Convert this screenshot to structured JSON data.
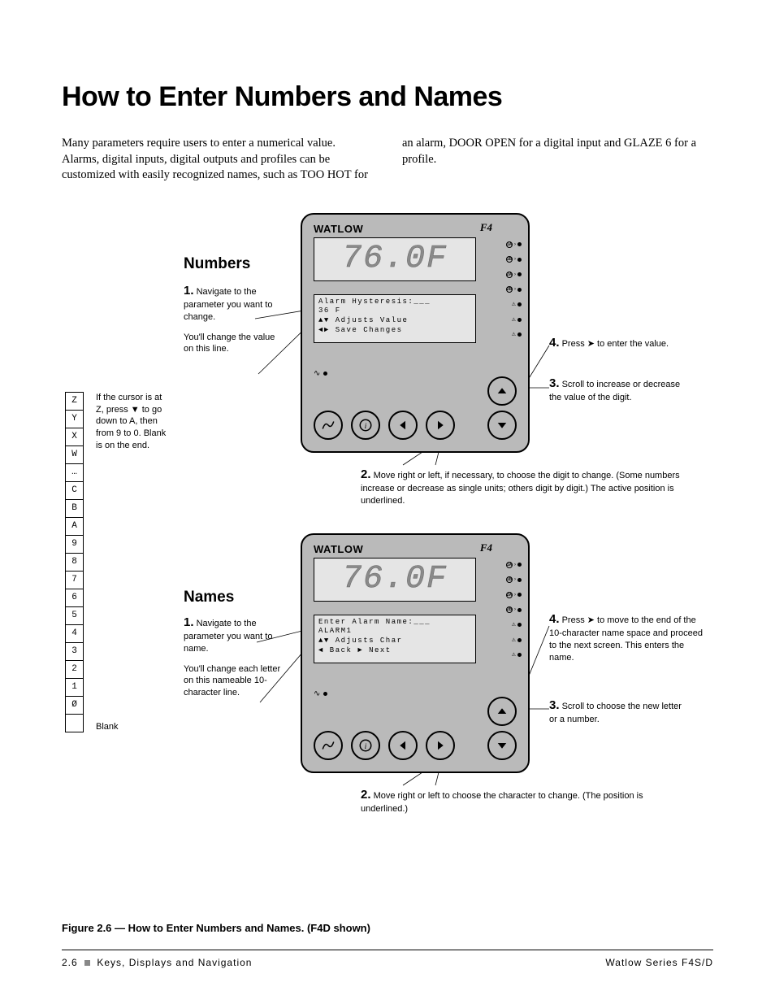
{
  "title": "How to Enter Numbers and Names",
  "intro": "Many parameters require users to enter a numerical value. Alarms, digital inputs, digital outputs and profiles can be customized with easily recognized names, such as TOO HOT for an alarm, DOOR OPEN for a digital input and GLAZE 6 for a profile.",
  "char_cells": [
    "Z",
    "Y",
    "X",
    "W",
    "…",
    "C",
    "B",
    "A",
    "9",
    "8",
    "7",
    "6",
    "5",
    "4",
    "3",
    "2",
    "1",
    "Ø",
    ""
  ],
  "blank_label": "Blank",
  "cursor_note": "If the cursor is at Z, press ▼ to go down to A, then from 9 to 0. Blank is on the end.",
  "numbers": {
    "heading": "Numbers",
    "step1": "Navigate to the parameter you want to change.",
    "step1_sub": "You'll change the value on this line.",
    "step2": "Move right or left, if necessary, to choose the digit to change. (Some numbers increase or decrease as single units; others digit by digit.) The active position is underlined.",
    "step3": "Scroll to increase or decrease the value of the digit.",
    "step4": "Press ➤ to enter the value."
  },
  "names": {
    "heading": "Names",
    "step1": "Navigate to the parameter you want to name.",
    "step1_sub": "You'll change each letter on this nameable 10-character line.",
    "step2": "Move right or left to choose the character to change. (The position is underlined.)",
    "step3": "Scroll to choose the new letter or a number.",
    "step4": "Press ➤ to move to the end of the 10-character name space and proceed to the next screen. This enters the name."
  },
  "device1": {
    "brand": "WATLOW",
    "model": "F4",
    "big": "76.0F",
    "lcd": [
      "Alarm Hysteresis:___",
      "   36  F",
      "▲▼ Adjusts Value",
      "◄► Save Changes"
    ],
    "led_labels": [
      "1A",
      "1B",
      "2A",
      "2B"
    ]
  },
  "device2": {
    "brand": "WATLOW",
    "model": "F4",
    "big": "76.0F",
    "lcd": [
      "Enter Alarm Name:___",
      "ALARM1",
      "▲▼ Adjusts Char",
      "◄ Back    ► Next"
    ],
    "led_labels": [
      "1A",
      "1B",
      "2A",
      "2B"
    ]
  },
  "figure_caption": "Figure 2.6 — How to Enter Numbers and Names. (F4D shown)",
  "footer_left_page": "2.6",
  "footer_left_text": "Keys, Displays and Navigation",
  "footer_right": "Watlow Series F4S/D"
}
